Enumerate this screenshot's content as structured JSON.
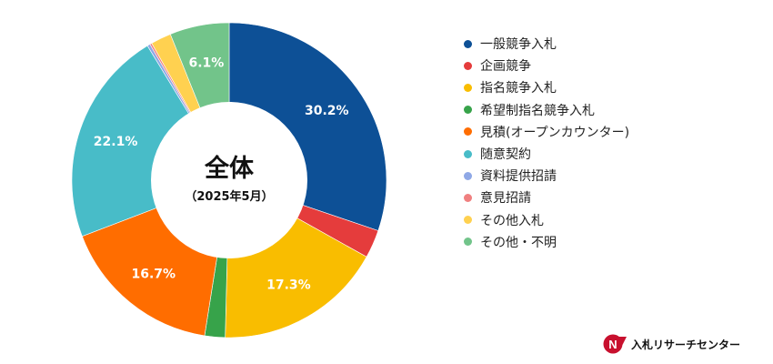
{
  "chart_data": {
    "type": "pie",
    "variant": "donut",
    "title": "全体",
    "subtitle": "（2025年5月）",
    "categories": [
      "一般競争入札",
      "企画競争",
      "指名競争入札",
      "希望制指名競争入札",
      "見積(オープンカウンター)",
      "随意契約",
      "資料提供招請",
      "意見招請",
      "その他入札",
      "その他・不明"
    ],
    "values": [
      30.2,
      2.9,
      17.3,
      2.1,
      16.7,
      22.1,
      0.3,
      0.2,
      2.1,
      6.1
    ],
    "labels": [
      "30.2%",
      "",
      "17.3%",
      "",
      "16.7%",
      "22.1%",
      "",
      "",
      "",
      "6.1%"
    ],
    "colors": [
      "#0d5096",
      "#e53c3c",
      "#f9bd00",
      "#37a34a",
      "#ff6d00",
      "#48bcc8",
      "#8fa8e6",
      "#f08080",
      "#ffd150",
      "#72c48a"
    ],
    "legend_position": "right"
  },
  "brand": {
    "name": "入札リサーチセンター",
    "logo_text": "N",
    "logo_color": "#c8102e"
  }
}
